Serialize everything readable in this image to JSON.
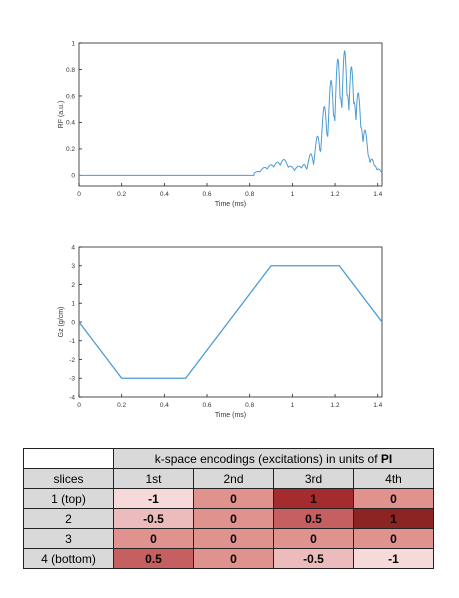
{
  "chart_data": [
    {
      "type": "line",
      "xlabel": "Time (ms)",
      "ylabel": "RF (a.u.)",
      "xlim": [
        0,
        1.42
      ],
      "ylim": [
        -0.08,
        1
      ],
      "xticks": [
        "0",
        "0.2",
        "0.4",
        "0.6",
        "0.8",
        "1",
        "1.2",
        "1.4"
      ],
      "yticks": [
        "0",
        "0.2",
        "0.4",
        "0.6",
        "0.8",
        "1"
      ],
      "grid": false,
      "color": "#4a9bd4",
      "envelope_peaks": [
        {
          "x": 0.84,
          "y": 0.03
        },
        {
          "x": 0.87,
          "y": 0.06
        },
        {
          "x": 0.9,
          "y": 0.08
        },
        {
          "x": 0.93,
          "y": 0.1
        },
        {
          "x": 0.96,
          "y": 0.12
        },
        {
          "x": 0.99,
          "y": 0.07
        },
        {
          "x": 1.03,
          "y": 0.07
        },
        {
          "x": 1.06,
          "y": 0.09
        },
        {
          "x": 1.09,
          "y": 0.17
        },
        {
          "x": 1.12,
          "y": 0.3
        },
        {
          "x": 1.15,
          "y": 0.52
        },
        {
          "x": 1.18,
          "y": 0.72
        },
        {
          "x": 1.21,
          "y": 0.9
        },
        {
          "x": 1.24,
          "y": 1.0
        },
        {
          "x": 1.27,
          "y": 0.92
        },
        {
          "x": 1.3,
          "y": 0.75
        },
        {
          "x": 1.33,
          "y": 0.45
        },
        {
          "x": 1.36,
          "y": 0.18
        },
        {
          "x": 1.39,
          "y": 0.08
        },
        {
          "x": 1.41,
          "y": 0.03
        }
      ]
    },
    {
      "type": "line",
      "xlabel": "Time (ms)",
      "ylabel": "Gz (g/cm)",
      "xlim": [
        0,
        1.42
      ],
      "ylim": [
        -4,
        4
      ],
      "xticks": [
        "0",
        "0.2",
        "0.4",
        "0.6",
        "0.8",
        "1",
        "1.2",
        "1.4"
      ],
      "yticks": [
        "-4",
        "-3",
        "-2",
        "-1",
        "0",
        "1",
        "2",
        "3",
        "4"
      ],
      "grid": false,
      "color": "#4a9bd4",
      "x": [
        0,
        0.2,
        0.5,
        0.9,
        1.22,
        1.42
      ],
      "y": [
        0,
        -3,
        -3,
        3,
        3,
        0
      ]
    },
    {
      "type": "table",
      "header": "k-space encodings (excitations) in units of",
      "header_bold": "PI",
      "columns": [
        "slices",
        "1st",
        "2nd",
        "3rd",
        "4th"
      ],
      "rows": [
        {
          "label": "1 (top)",
          "values": [
            "-1",
            "0",
            "1",
            "0"
          ],
          "colors": [
            "#f6d9d9",
            "#e0928f",
            "#a42c2e",
            "#e0928f"
          ]
        },
        {
          "label": "2",
          "values": [
            "-0.5",
            "0",
            "0.5",
            "1"
          ],
          "colors": [
            "#ecbcbc",
            "#e0928f",
            "#c55f60",
            "#8c2424"
          ]
        },
        {
          "label": "3",
          "values": [
            "0",
            "0",
            "0",
            "0"
          ],
          "colors": [
            "#e0928f",
            "#e0928f",
            "#e0928f",
            "#e0928f"
          ]
        },
        {
          "label": "4 (bottom)",
          "values": [
            "0.5",
            "0",
            "-0.5",
            "-1"
          ],
          "colors": [
            "#c55f60",
            "#e0928f",
            "#ecbcbc",
            "#f6d9d9"
          ]
        }
      ]
    }
  ]
}
